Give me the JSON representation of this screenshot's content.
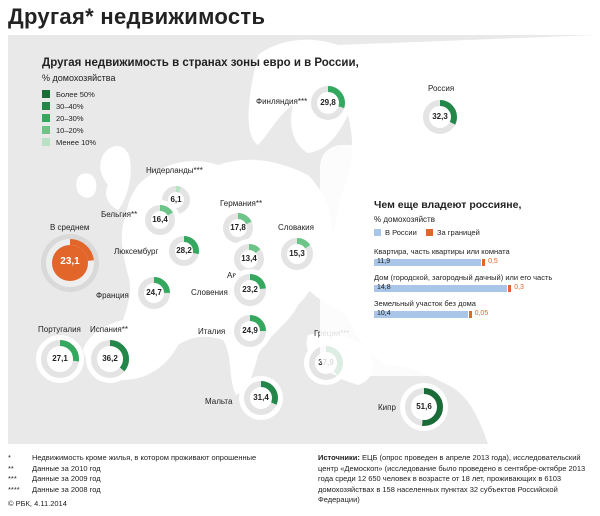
{
  "title": "Другая* недвижимость",
  "map": {
    "title": "Другая недвижимость в странах зоны евро и в России,",
    "subtitle": "% домохозяйства",
    "legend": [
      {
        "label": "Более 50%",
        "color": "#1a6b38"
      },
      {
        "label": "30–40%",
        "color": "#23874a"
      },
      {
        "label": "20–30%",
        "color": "#35a860"
      },
      {
        "label": "10–20%",
        "color": "#6cc489"
      },
      {
        "label": "Менее 10%",
        "color": "#b9e2c5"
      }
    ]
  },
  "countries": [
    {
      "name": "Финляндия***",
      "value": 29.8,
      "display": "29,8"
    },
    {
      "name": "Россия",
      "value": 32.3,
      "display": "32,3"
    },
    {
      "name": "Нидерланды***",
      "value": 6.1,
      "display": "6,1"
    },
    {
      "name": "Бельгия**",
      "value": 16.4,
      "display": "16,4"
    },
    {
      "name": "Германия**",
      "value": 17.8,
      "display": "17,8"
    },
    {
      "name": "Словакия",
      "value": 15.3,
      "display": "15,3"
    },
    {
      "name": "В среднем",
      "value": 23.1,
      "display": "23,1"
    },
    {
      "name": "Люксембург",
      "value": 28.2,
      "display": "28,2"
    },
    {
      "name": "Австрия",
      "value": 13.4,
      "display": "13,4"
    },
    {
      "name": "Франция",
      "value": 24.7,
      "display": "24,7"
    },
    {
      "name": "Словения",
      "value": 23.2,
      "display": "23,2"
    },
    {
      "name": "Португалия",
      "value": 27.1,
      "display": "27,1"
    },
    {
      "name": "Испания**",
      "value": 36.2,
      "display": "36,2"
    },
    {
      "name": "Италия",
      "value": 24.9,
      "display": "24,9"
    },
    {
      "name": "Греция***",
      "value": 37.9,
      "display": "37,9"
    },
    {
      "name": "Мальта",
      "value": 31.4,
      "display": "31,4"
    },
    {
      "name": "Кипр",
      "value": 51.6,
      "display": "51,6"
    }
  ],
  "panel": {
    "title": "Чем еще владеют россияне,",
    "subtitle": "% домохозяйств",
    "legend_russia": "В России",
    "legend_abroad": "За границей",
    "color_russia": "#a9c6e8",
    "color_abroad": "#e2652a",
    "rows": [
      {
        "label": "Квартира, часть квартиры или комната",
        "russia": 11.9,
        "russia_display": "11,9",
        "abroad_display": "0,5"
      },
      {
        "label": "Дом (городской, загородный дачный) или его часть",
        "russia": 14.8,
        "russia_display": "14,8",
        "abroad_display": "0,3"
      },
      {
        "label": "Земельный участок без дома",
        "russia": 10.4,
        "russia_display": "10,4",
        "abroad_display": "0,05"
      }
    ]
  },
  "footnotes": [
    {
      "mark": "*",
      "text": "Недвижимость кроме жилья, в котором проживают опрошенные"
    },
    {
      "mark": "**",
      "text": "Данные за 2010 год"
    },
    {
      "mark": "***",
      "text": "Данные за 2009 год"
    },
    {
      "mark": "****",
      "text": "Данные за 2008 год"
    }
  ],
  "sources": {
    "label": "Источники:",
    "text": " ЕЦБ (опрос проведен в апреле 2013 года), исследовательский центр «Демоскоп» (исследование было проведено в сентябре-октябре 2013 года среди 12 650 человек в возрасте от 18 лет, проживающих в 6103 домохозяйствах в 158 населенных пунктах 32 субъектов Российской Федерации)"
  },
  "copyright": "© РБК, 4.11.2014"
}
